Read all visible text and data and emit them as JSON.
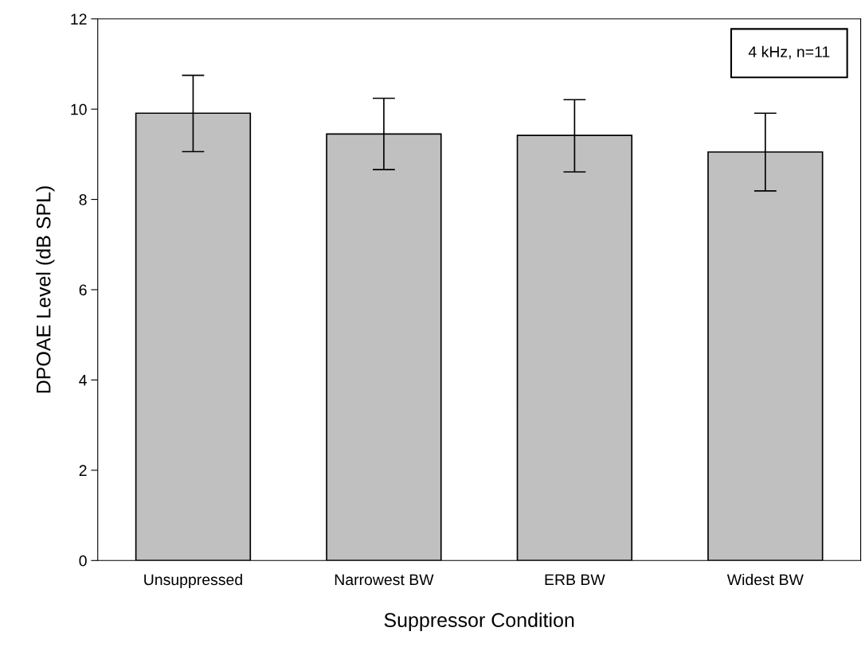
{
  "chart_data": {
    "type": "bar",
    "xlabel": "Suppressor Condition",
    "ylabel": "DPOAE Level (dB SPL)",
    "categories": [
      "Unsuppressed",
      "Narrowest BW",
      "ERB BW",
      "Widest BW"
    ],
    "values": [
      9.91,
      9.45,
      9.42,
      9.05
    ],
    "errors": [
      [
        9.06,
        10.75
      ],
      [
        8.66,
        10.24
      ],
      [
        8.61,
        10.21
      ],
      [
        8.19,
        9.91
      ]
    ],
    "color": "#c0c0c0",
    "ylim": [
      0,
      12
    ],
    "yticks": [
      0,
      2,
      4,
      6,
      8,
      10,
      12
    ],
    "grid": false,
    "annotations": [
      "4 kHz, n=11"
    ]
  }
}
